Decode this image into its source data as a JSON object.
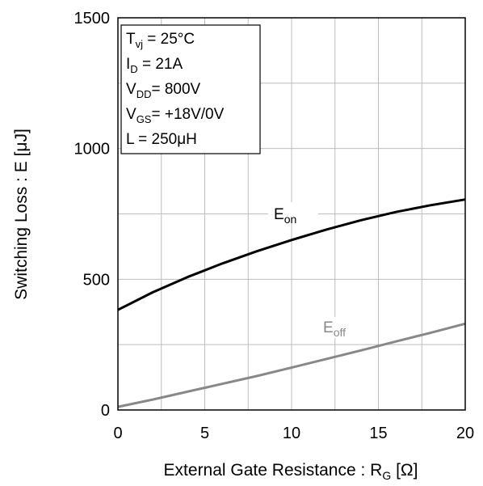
{
  "chart_data": {
    "type": "line",
    "xlabel": {
      "main": "External Gate Resistance : R",
      "sub": "G",
      "unit": " [Ω]"
    },
    "ylabel": "Switching Loss : E [μJ]",
    "xlim": [
      0,
      20
    ],
    "ylim": [
      0,
      1500
    ],
    "xticks": [
      "0",
      "5",
      "10",
      "15",
      "20"
    ],
    "yticks": [
      "0",
      "500",
      "1000",
      "1500"
    ],
    "grid": true,
    "conditions": [
      {
        "main": "T",
        "sub": "vj",
        "rest": " =   25°C"
      },
      {
        "main": "I",
        "sub": "D",
        "rest": " =   21A"
      },
      {
        "main": "V",
        "sub": "DD",
        "rest": "= 800V"
      },
      {
        "main": "V",
        "sub": "GS",
        "rest": "= +18V/0V"
      },
      {
        "main": "L =   250μH",
        "sub": "",
        "rest": ""
      }
    ],
    "series": [
      {
        "label_main": "E",
        "label_sub": "on",
        "color": "#000000",
        "x": [
          0,
          2,
          4,
          6,
          8,
          10,
          12,
          14,
          16,
          18,
          20
        ],
        "y": [
          383,
          450,
          508,
          560,
          607,
          650,
          690,
          726,
          757,
          783,
          805
        ]
      },
      {
        "label_main": "E",
        "label_sub": "off",
        "color": "#888888",
        "x": [
          0,
          2,
          4,
          6,
          8,
          10,
          12,
          14,
          16,
          18,
          20
        ],
        "y": [
          12,
          40,
          70,
          100,
          130,
          162,
          195,
          228,
          262,
          295,
          330
        ]
      }
    ]
  }
}
